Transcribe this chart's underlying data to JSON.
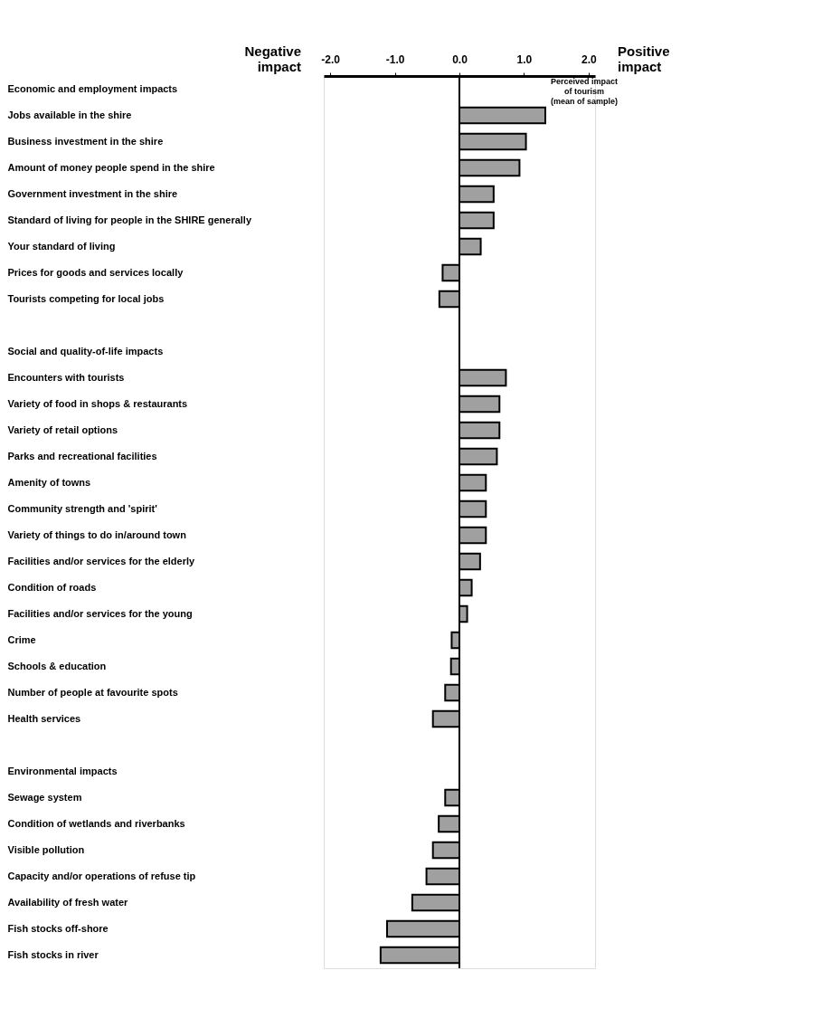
{
  "chart_data": {
    "type": "bar",
    "orientation": "horizontal",
    "categories": [
      "Economic and employment impacts",
      "Jobs available in the shire",
      "Business investment in the shire",
      "Amount of money people spend in the shire",
      "Government investment in the shire",
      "Standard of living for people in the SHIRE generally",
      "Your standard of living",
      "Prices for goods and services locally",
      "Tourists competing for local jobs",
      null,
      "Social and quality-of-life impacts",
      "Encounters with tourists",
      "Variety of food in shops & restaurants",
      "Variety of retail options",
      "Parks and recreational facilities",
      "Amenity of towns",
      "Community strength and 'spirit'",
      "Variety of things to do in/around town",
      "Facilities and/or services for the elderly",
      "Condition of roads",
      "Facilities and/or services for the young",
      "Crime",
      "Schools & education",
      "Number of people at favourite spots",
      "Health services",
      null,
      "Environmental impacts",
      "Sewage system",
      "Condition of wetlands and riverbanks",
      "Visible pollution",
      "Capacity and/or operations of refuse tip",
      "Availability of fresh water",
      "Fish stocks off-shore",
      "Fish stocks in river"
    ],
    "values": [
      null,
      1.33,
      1.03,
      0.93,
      0.53,
      0.53,
      0.33,
      -0.26,
      -0.31,
      null,
      null,
      0.72,
      0.62,
      0.62,
      0.58,
      0.41,
      0.41,
      0.41,
      0.32,
      0.19,
      0.12,
      -0.12,
      -0.13,
      -0.22,
      -0.41,
      null,
      null,
      -0.22,
      -0.32,
      -0.41,
      -0.51,
      -0.73,
      -1.12,
      -1.22
    ],
    "color": "#a0a0a0",
    "xlim": [
      -2.1,
      2.1
    ],
    "xticks": [
      {
        "value": -2,
        "label": "-2.0"
      },
      {
        "value": -1,
        "label": "-1.0"
      },
      {
        "value": 0,
        "label": "0.0"
      },
      {
        "value": 1,
        "label": "1.0"
      },
      {
        "value": 2,
        "label": "2.0"
      }
    ],
    "ref_lines": [
      {
        "axis": "x",
        "value": 0
      }
    ],
    "annotations": [
      "Negative\nimpact",
      "Positive\nimpact",
      "Perceived impact\nof tourism\n(mean of sample)"
    ],
    "grid": false
  }
}
